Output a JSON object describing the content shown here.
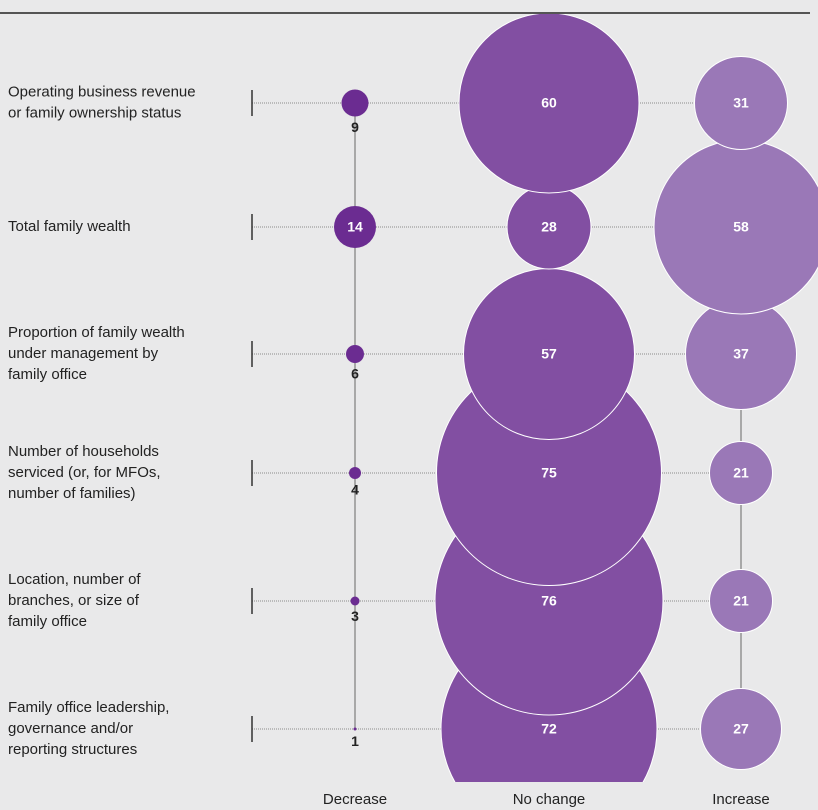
{
  "chart_data": {
    "type": "bubble-grid",
    "categories": [
      [
        "Operating business revenue",
        "or family ownership status"
      ],
      [
        "Total family wealth"
      ],
      [
        "Proportion of family wealth",
        "under management by",
        "family office"
      ],
      [
        "Number of households",
        "serviced (or, for MFOs,",
        "number of families)"
      ],
      [
        "Location, number of",
        "branches, or size of",
        "family office"
      ],
      [
        "Family office leadership,",
        "governance and/or",
        "reporting structures"
      ]
    ],
    "series": [
      {
        "name": "Decrease",
        "color": "#6b2c91",
        "values": [
          9,
          14,
          6,
          4,
          3,
          1
        ]
      },
      {
        "name": "No change",
        "color": "#824fa2",
        "values": [
          60,
          28,
          57,
          75,
          76,
          72
        ]
      },
      {
        "name": "Increase",
        "color": "#9a78b7",
        "values": [
          31,
          58,
          37,
          21,
          21,
          27
        ]
      }
    ]
  }
}
